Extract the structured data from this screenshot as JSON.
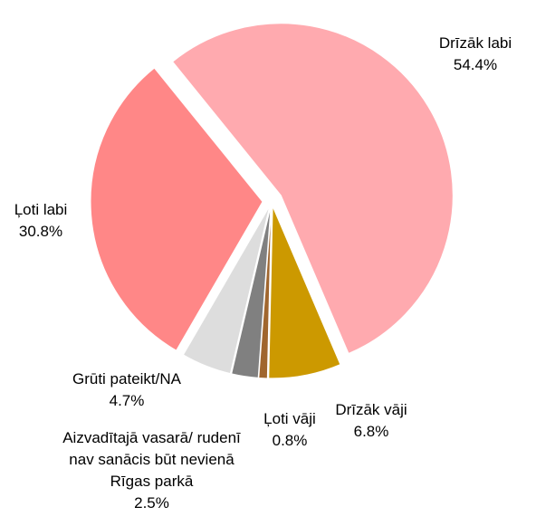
{
  "chart_data": {
    "type": "pie",
    "categories": [
      "Drīzāk labi",
      "Drīzāk vāji",
      "Ļoti vāji",
      "Aizvadītajā vasarā/ rudenī nav sanācis būt nevienā Rīgas parkā",
      "Grūti pateikt/NA",
      "Ļoti labi"
    ],
    "values": [
      54.4,
      6.8,
      0.8,
      2.5,
      4.7,
      30.8
    ],
    "value_labels": [
      "54.4%",
      "6.8%",
      "0.8%",
      "2.5%",
      "4.7%",
      "30.8%"
    ],
    "colors": [
      "#FFAAAF",
      "#CC9900",
      "#A0662E",
      "#808080",
      "#DDDDDD",
      "#FF8787"
    ]
  }
}
